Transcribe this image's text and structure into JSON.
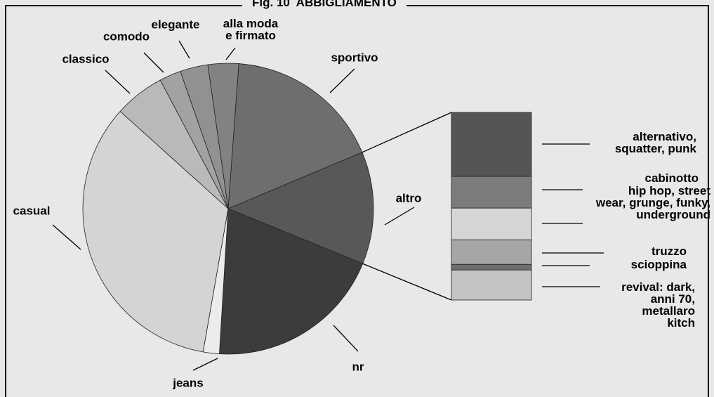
{
  "chart_data": {
    "type": "pie",
    "title": "Fig. 10  ABBIGLIAMENTO",
    "categories": [
      "sportivo",
      "altro",
      "nr",
      "jeans",
      "casual",
      "classico",
      "comodo",
      "elegante",
      "alla moda\ne firmato"
    ],
    "values": [
      17.5,
      12.5,
      19.8,
      1.8,
      33.9,
      5.6,
      2.4,
      3.1,
      3.4
    ],
    "colors": [
      "#6e6e70",
      "#58585a",
      "#3c3c3c",
      "#ececec",
      "#d4d4d4",
      "#b9b9b9",
      "#a2a2a2",
      "#919191",
      "#828282"
    ],
    "breakdown": {
      "categories": [
        "alternativo,\nsquatter, punk",
        "cabinotto",
        "hip hop, street\nwear, grunge, funky,\nunderground",
        "truzzo",
        "scioppina",
        "revival: dark,\nanni 70,\nmetallaro\nkitch"
      ],
      "values": [
        34.1,
        16.9,
        16.9,
        13.1,
        3.0,
        16.0
      ],
      "colors": [
        "#555557",
        "#7c7c7e",
        "#d6d6d6",
        "#a6a6a6",
        "#6e6e70",
        "#c4c4c4"
      ]
    }
  }
}
